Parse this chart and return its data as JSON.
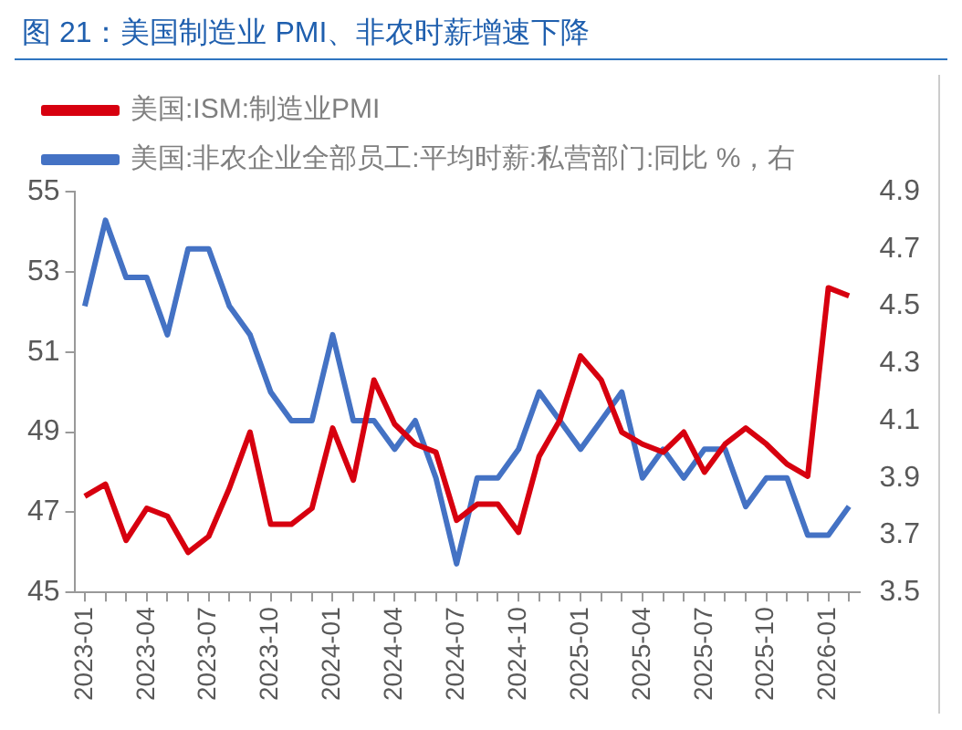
{
  "chart_data": {
    "type": "line",
    "title": "图 21：美国制造业 PMI、非农时薪增速下降",
    "categories": [
      "2023-01",
      null,
      null,
      "2023-04",
      null,
      null,
      "2023-07",
      null,
      null,
      "2023-10",
      null,
      null,
      "2024-01",
      null,
      null,
      "2024-04",
      null,
      null,
      "2024-07",
      null,
      null,
      "2024-10",
      null,
      null,
      "2025-01",
      null,
      null,
      "2025-04",
      null,
      null,
      "2025-07",
      null,
      null,
      "2025-10",
      null,
      null,
      "2026-01",
      null
    ],
    "series": [
      {
        "name": "美国:ISM:制造业PMI",
        "color": "#d7000f",
        "values": [
          47.4,
          47.7,
          46.3,
          47.1,
          46.9,
          46.0,
          46.4,
          47.6,
          49.0,
          46.7,
          46.7,
          47.1,
          49.1,
          47.8,
          50.3,
          49.2,
          48.7,
          48.5,
          46.8,
          47.2,
          47.2,
          46.5,
          48.4,
          49.3,
          50.9,
          50.3,
          49.0,
          48.7,
          48.5,
          49.0,
          48.0,
          48.7,
          49.1,
          48.7,
          48.2,
          47.9,
          52.6,
          52.4
        ]
      },
      {
        "name": "美国:非农企业全部员工:平均时薪:私营部门:同比 %，右",
        "color": "#4472c4",
        "axis": "y2",
        "values": [
          4.5,
          4.8,
          4.6,
          4.6,
          4.4,
          4.7,
          4.7,
          4.5,
          4.4,
          4.2,
          4.1,
          4.1,
          4.4,
          4.1,
          4.1,
          4.0,
          4.1,
          3.9,
          3.6,
          3.9,
          3.9,
          4.0,
          4.2,
          4.1,
          4.0,
          4.1,
          4.2,
          3.9,
          4.0,
          3.9,
          4.0,
          4.0,
          3.8,
          3.9,
          3.9,
          3.7,
          3.7,
          3.8
        ]
      }
    ],
    "ylim": [
      45,
      55
    ],
    "yticks": [
      45,
      47,
      49,
      51,
      53,
      55
    ],
    "y2lim": [
      3.5,
      4.9
    ],
    "y2ticks": [
      3.5,
      3.7,
      3.9,
      4.1,
      4.3,
      4.5,
      4.7,
      4.9
    ],
    "legend": "top",
    "grid": false,
    "marker": "none",
    "line_style": "solid"
  }
}
